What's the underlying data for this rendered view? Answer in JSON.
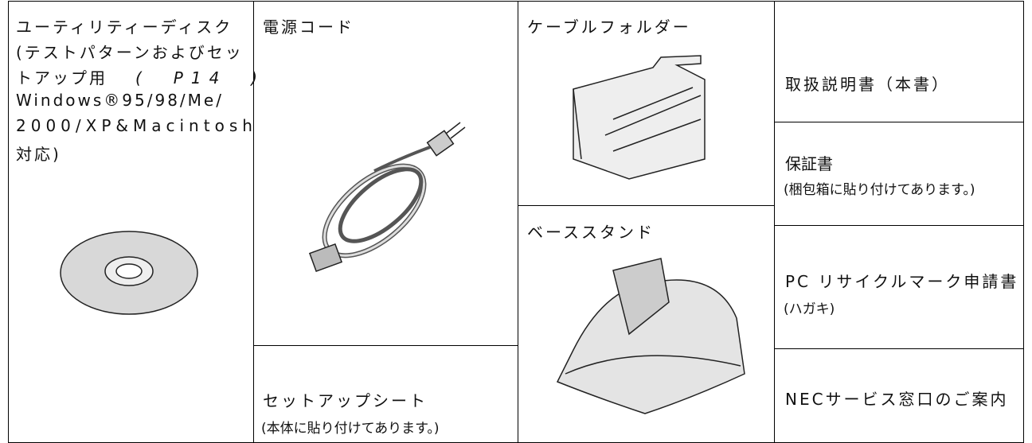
{
  "cells": {
    "utility_disk": {
      "lines": [
        "ユーティリティーディスク",
        "(テストパターンおよびセッ",
        "トアップ用",
        "(　P14　)",
        "Windows®95/98/Me/",
        "2000/XP&Macintosh",
        "対応)"
      ]
    },
    "power_cord": {
      "label": "電源コード"
    },
    "setup_sheet": {
      "label": "セットアップシート",
      "note": "(本体に貼り付けてあります。)"
    },
    "cable_folder": {
      "label": "ケーブルフォルダー"
    },
    "base_stand": {
      "label": "ベーススタンド"
    },
    "manual": {
      "label": "取扱説明書（本書）"
    },
    "warranty": {
      "label": "保証書",
      "note": "(梱包箱に貼り付けてあります。)"
    },
    "pc_recycle": {
      "label": "PC リサイクルマーク申請書",
      "note": "(ハガキ)"
    },
    "nec_service": {
      "label": "NECサービス窓口のご案内"
    }
  }
}
